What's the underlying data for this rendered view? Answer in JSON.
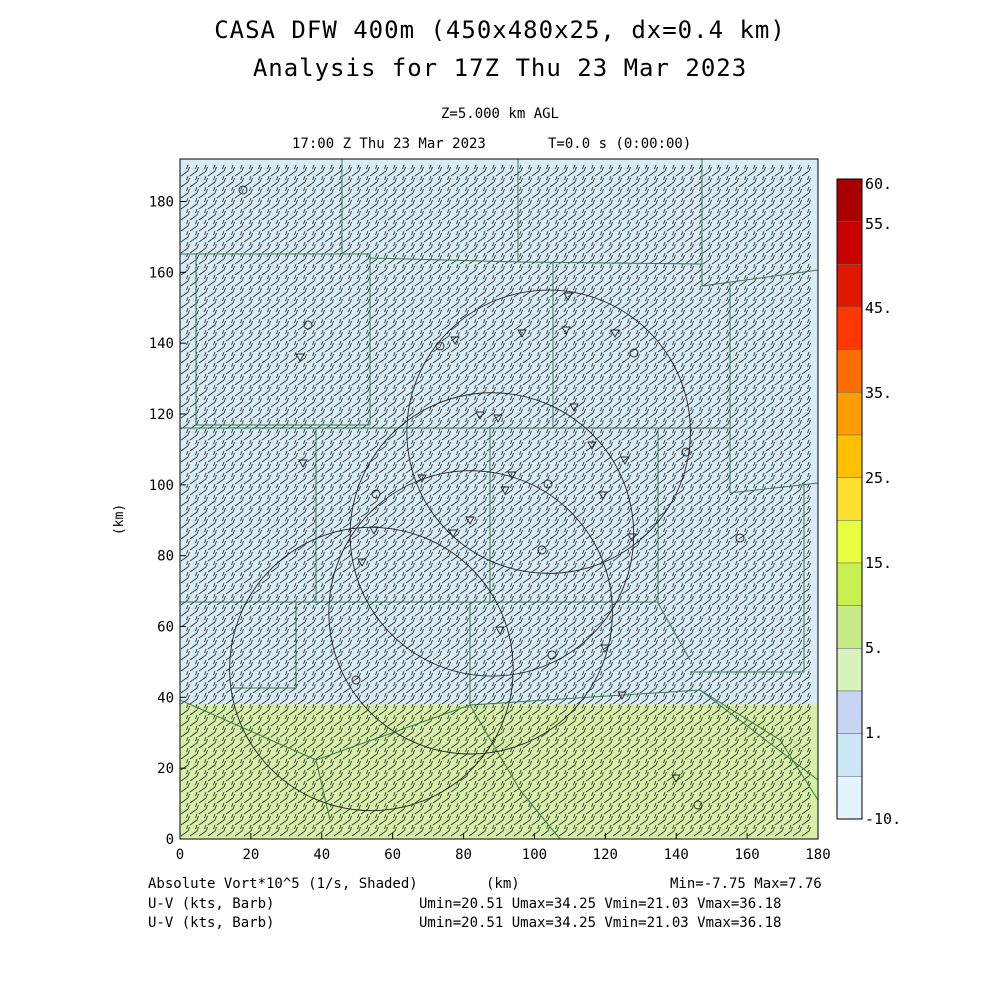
{
  "header": {
    "title_line1": "CASA DFW 400m (450x480x25, dx=0.4 km)",
    "title_line2": "Analysis for 17Z Thu 23 Mar 2023",
    "level": "Z=5.000 km AGL",
    "valid_time": "17:00 Z Thu 23 Mar 2023",
    "sim_time": "T=0.0 s (0:00:00)"
  },
  "footer": {
    "field_label": "Absolute Vort*10^5 (1/s, Shaded)",
    "km_label": "(km)",
    "minmax": "Min=-7.75 Max=7.76",
    "uv1_label": "U-V (kts, Barb)",
    "uv1_stats": "Umin=20.51 Umax=34.25 Vmin=21.03 Vmax=36.18",
    "uv2_label": "U-V (kts, Barb)",
    "uv2_stats": "Umin=20.51 Umax=34.25 Vmin=21.03 Vmax=36.18"
  },
  "chart_data": {
    "type": "heatmap",
    "xlabel": "",
    "ylabel": "(km)",
    "xlim": [
      0,
      180
    ],
    "ylim": [
      0,
      192
    ],
    "x_ticks": [
      "0",
      "20",
      "40",
      "60",
      "80",
      "100",
      "120",
      "140",
      "160",
      "180"
    ],
    "y_ticks": [
      "0",
      "20",
      "40",
      "60",
      "80",
      "100",
      "120",
      "140",
      "160",
      "180"
    ],
    "colorbar": {
      "labels": [
        "60.",
        "55.",
        "45.",
        "35.",
        "25.",
        "15.",
        "5.",
        "1.",
        "-10."
      ],
      "colors": [
        "#a80000",
        "#c80000",
        "#e01800",
        "#ff3800",
        "#ff6e00",
        "#ff9c00",
        "#ffc000",
        "#ffe030",
        "#e8ff40",
        "#c8f050",
        "#c8ec88",
        "#d8f2c0",
        "#c8d4f4",
        "#cde6f6",
        "#e4f4fc"
      ]
    },
    "shading_regions": [
      {
        "y_from": 38,
        "y_to": 192,
        "category": "-10. to 1.",
        "color": "#d8ecf8"
      },
      {
        "y_from": 0,
        "y_to": 38,
        "category": "5. to 15.",
        "color": "#d6f0a8"
      }
    ],
    "radar_range_rings": [
      {
        "cx": 54,
        "cy": 48,
        "r": 40
      },
      {
        "cx": 82,
        "cy": 64,
        "r": 40
      },
      {
        "cx": 88,
        "cy": 86,
        "r": 40
      },
      {
        "cx": 104,
        "cy": 115,
        "r": 40
      }
    ],
    "wind": {
      "u_range_kts": [
        20.51,
        34.25
      ],
      "v_range_kts": [
        21.03,
        36.18
      ]
    }
  }
}
